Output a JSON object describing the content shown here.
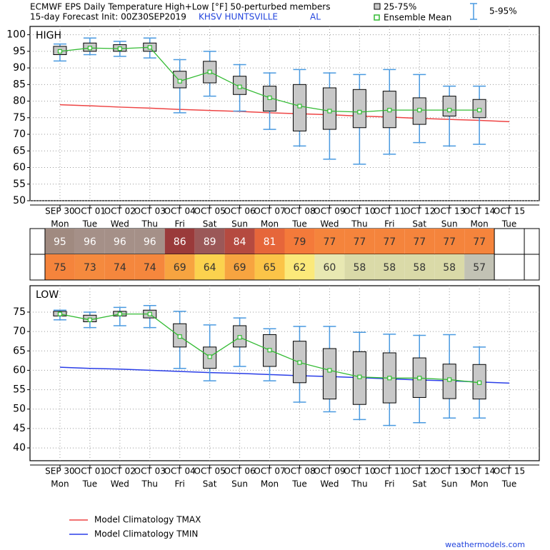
{
  "header": {
    "title": "ECMWF EPS Daily Temperature High+Low [°F]  50-perturbed members",
    "subtitle": "15-day Forecast Init: 00Z30SEP2019",
    "station": "KHSV HUNTSVILLE",
    "state": "AL",
    "legend": [
      {
        "name": "25-75%",
        "color": "#c8c8c8"
      },
      {
        "name": "Ensemble Mean",
        "color": "#33bb33"
      },
      {
        "name": "5-95%",
        "color": "#4a9ae0"
      }
    ]
  },
  "chart_data": [
    {
      "type": "box",
      "label": "HIGH",
      "ylim": [
        50,
        102.5
      ],
      "yticks": [
        50,
        55,
        60,
        65,
        70,
        75,
        80,
        85,
        90,
        95,
        100
      ],
      "grid": true,
      "categories": [
        "SEP 30",
        "OCT 01",
        "OCT 02",
        "OCT 03",
        "OCT 04",
        "OCT 05",
        "OCT 06",
        "OCT 07",
        "OCT 08",
        "OCT 09",
        "OCT 10",
        "OCT 11",
        "OCT 12",
        "OCT 13",
        "OCT 14",
        "OCT 15"
      ],
      "days": [
        "Mon",
        "Tue",
        "Wed",
        "Thu",
        "Fri",
        "Sat",
        "Sun",
        "Mon",
        "Tue",
        "Wed",
        "Thu",
        "Fri",
        "Sat",
        "Sun",
        "Mon",
        "Tue"
      ],
      "p5": [
        92.1,
        94,
        93.5,
        93,
        76.5,
        81.5,
        77,
        71.5,
        66.5,
        62.5,
        61,
        64,
        67.5,
        66.5,
        67,
        null
      ],
      "p25": [
        94,
        95,
        95,
        95,
        84,
        85.5,
        82,
        77,
        71,
        71.5,
        72,
        72,
        73,
        75.5,
        75,
        null
      ],
      "mean": [
        95,
        96,
        95.8,
        96.2,
        86,
        88.8,
        84.3,
        81,
        78.5,
        77,
        76.7,
        77.3,
        77.3,
        77.3,
        77.3,
        null
      ],
      "p75": [
        96.5,
        97.5,
        97,
        97.5,
        89,
        92,
        87.5,
        84.5,
        85,
        84,
        83.5,
        83,
        81,
        81.5,
        80.5,
        null
      ],
      "p95": [
        97.2,
        99,
        98,
        99,
        92.5,
        95,
        91,
        88.5,
        89.5,
        88.5,
        88,
        89.5,
        88,
        84.5,
        84.5,
        null
      ],
      "climatology": [
        78.9,
        78.6,
        78.2,
        77.9,
        77.5,
        77.2,
        76.9,
        76.5,
        76.2,
        75.9,
        75.5,
        75.2,
        74.8,
        74.5,
        74.2,
        73.8
      ]
    },
    {
      "type": "box",
      "label": "LOW",
      "ylim": [
        36.7,
        81.8
      ],
      "yticks": [
        40,
        45,
        50,
        55,
        60,
        65,
        70,
        75
      ],
      "grid": true,
      "categories": [
        "SEP 30",
        "OCT 01",
        "OCT 02",
        "OCT 03",
        "OCT 04",
        "OCT 05",
        "OCT 06",
        "OCT 07",
        "OCT 08",
        "OCT 09",
        "OCT 10",
        "OCT 11",
        "OCT 12",
        "OCT 13",
        "OCT 14",
        "OCT 15"
      ],
      "days": [
        "Mon",
        "Tue",
        "Wed",
        "Thu",
        "Fri",
        "Sat",
        "Sun",
        "Mon",
        "Tue",
        "Wed",
        "Thu",
        "Fri",
        "Sat",
        "Sun",
        "Mon",
        "Tue"
      ],
      "p5": [
        73,
        71,
        71.5,
        71,
        60.5,
        57.3,
        61,
        57.3,
        51.8,
        49.3,
        47.3,
        45.8,
        46.5,
        47.7,
        47.7,
        null
      ],
      "p25": [
        74,
        72.5,
        74,
        73.5,
        66,
        60.5,
        66,
        61,
        56.8,
        52.6,
        51.2,
        51.6,
        53,
        52.7,
        52.6,
        null
      ],
      "mean": [
        74.5,
        73,
        74.5,
        74.5,
        68.7,
        63.5,
        68.5,
        65.2,
        62,
        60,
        58.3,
        58,
        58,
        57.6,
        56.8,
        null
      ],
      "p75": [
        75.2,
        74.2,
        75.2,
        75.5,
        72,
        66,
        71.5,
        69.2,
        67.5,
        65.6,
        64.8,
        64.5,
        63.2,
        61.6,
        61.5,
        null
      ],
      "p95": [
        75.5,
        75,
        76.2,
        76.7,
        75.2,
        71.7,
        73.5,
        70.7,
        71.3,
        71.3,
        69.8,
        69.3,
        69,
        69.2,
        66,
        null
      ],
      "climatology": [
        60.8,
        60.5,
        60.3,
        60.0,
        59.7,
        59.4,
        59.2,
        58.9,
        58.6,
        58.4,
        58.1,
        57.8,
        57.5,
        57.3,
        57.0,
        56.7
      ]
    }
  ],
  "table": {
    "rows": [
      {
        "values": [
          95,
          96,
          96,
          96,
          86,
          89,
          84,
          81,
          79,
          77,
          77,
          77,
          77,
          77,
          77
        ],
        "colors": [
          "#a08a80",
          "#a59088",
          "#a59088",
          "#a59088",
          "#9a3a3a",
          "#9b5858",
          "#b54a40",
          "#e6663a",
          "#f47a3a",
          "#f5843c",
          "#f5843c",
          "#f5843c",
          "#f5843c",
          "#f5843c",
          "#f5843c"
        ]
      },
      {
        "values": [
          75,
          73,
          74,
          74,
          69,
          64,
          69,
          65,
          62,
          60,
          58,
          58,
          58,
          58,
          57
        ],
        "colors": [
          "#f5843c",
          "#f58a3e",
          "#f5873d",
          "#f5873d",
          "#f7a440",
          "#fbd24e",
          "#f7a440",
          "#fbc448",
          "#fbe97a",
          "#e8e8b2",
          "#dadaa8",
          "#dadaa8",
          "#dadaa8",
          "#dadaa8",
          "#c2c2b4"
        ]
      }
    ]
  },
  "legend": [
    {
      "name": "Model Climatology TMAX",
      "color": "#ee4444"
    },
    {
      "name": "Model Climatology TMIN",
      "color": "#2a3ee8"
    }
  ],
  "credit": "weathermodels.com"
}
